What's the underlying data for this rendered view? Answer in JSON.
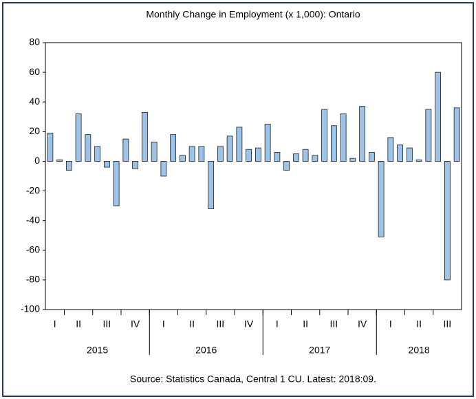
{
  "chart_data": {
    "type": "bar",
    "title": "Monthly Change in Employment (x 1,000): Ontario",
    "source": "Source: Statistics Canada, Central 1 CU. Latest: 2018:09.",
    "categories": [
      null,
      null,
      null,
      null,
      null,
      null,
      null,
      null,
      null,
      null,
      null,
      null,
      null,
      null,
      null,
      null,
      null,
      null,
      null,
      null,
      null,
      null,
      null,
      null,
      null,
      null,
      null,
      null,
      null,
      null,
      null,
      null,
      null,
      null,
      null,
      null,
      null,
      null,
      null,
      null,
      null,
      null,
      null,
      null
    ],
    "values": [
      19,
      1,
      -6,
      32,
      18,
      10,
      -4,
      -30,
      15,
      -5,
      33,
      13,
      -10,
      18,
      4,
      10,
      10,
      -32,
      10,
      17,
      23,
      8,
      9,
      25,
      6,
      -6,
      5,
      8,
      4,
      35,
      24,
      32,
      2,
      37,
      6,
      -51,
      16,
      11,
      9,
      1,
      35,
      60,
      -80,
      36
    ],
    "quarter_labels": [
      "I",
      "II",
      "III",
      "IV",
      "I",
      "II",
      "III",
      "IV",
      "I",
      "II",
      "III",
      "IV",
      "I",
      "II",
      "III"
    ],
    "year_labels": [
      "2015",
      "2016",
      "2017",
      "2018"
    ],
    "color": "#9dc3e6",
    "ylim": [
      -100,
      80
    ],
    "yticks": [
      -100,
      -80,
      -60,
      -40,
      -20,
      0,
      20,
      40,
      60,
      80
    ]
  }
}
